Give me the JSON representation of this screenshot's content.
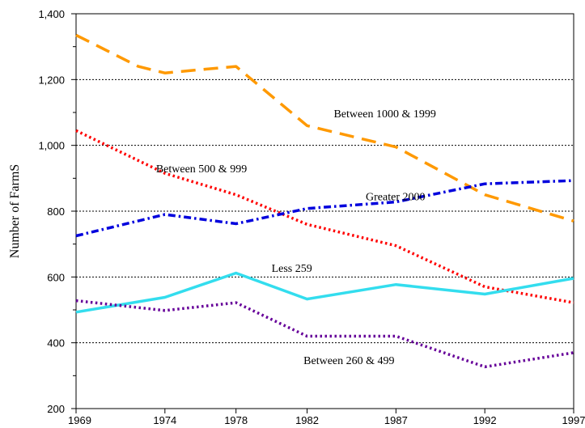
{
  "chart_data": {
    "type": "line",
    "title": "",
    "xlabel": "",
    "ylabel": "Number of FarmS",
    "x": [
      1969,
      1974,
      1978,
      1982,
      1987,
      1992,
      1997
    ],
    "x_tick_labels": [
      "1969",
      "1974",
      "1978",
      "1982",
      "1987",
      "1992",
      "1997"
    ],
    "ylim": [
      200,
      1400
    ],
    "y_ticks": [
      200,
      400,
      600,
      800,
      1000,
      1200,
      1400
    ],
    "y_tick_labels": [
      "200",
      "400",
      "600",
      "800",
      "1,000",
      "1,200",
      "1,400"
    ],
    "grid": "horizontal-dotted",
    "legend": "none",
    "series": [
      {
        "name": "Between 1000 & 1999",
        "color": "#FF9900",
        "dash": "dashed",
        "points": [
          [
            1969,
            1335
          ],
          [
            1972.5,
            1240
          ],
          [
            1974,
            1220
          ],
          [
            1976,
            1230
          ],
          [
            1978,
            1240
          ],
          [
            1982,
            1060
          ],
          [
            1987,
            995
          ],
          [
            1992,
            850
          ],
          [
            1997,
            770
          ]
        ]
      },
      {
        "name": "Between 500 & 999",
        "color": "#FF0000",
        "dash": "dotted",
        "points": [
          [
            1969,
            1045
          ],
          [
            1974,
            915
          ],
          [
            1978,
            850
          ],
          [
            1982,
            760
          ],
          [
            1987,
            695
          ],
          [
            1992,
            570
          ],
          [
            1997,
            522
          ]
        ]
      },
      {
        "name": "Greater 2000",
        "color": "#0000DD",
        "dash": "dashdot",
        "points": [
          [
            1969,
            725
          ],
          [
            1974,
            790
          ],
          [
            1978,
            762
          ],
          [
            1982,
            808
          ],
          [
            1987,
            828
          ],
          [
            1992,
            883
          ],
          [
            1997,
            893
          ]
        ]
      },
      {
        "name": "Less 259",
        "color": "#33DDEE",
        "dash": "solid",
        "points": [
          [
            1969,
            493
          ],
          [
            1974,
            538
          ],
          [
            1978,
            612
          ],
          [
            1982,
            533
          ],
          [
            1987,
            577
          ],
          [
            1992,
            548
          ],
          [
            1997,
            596
          ]
        ]
      },
      {
        "name": "Between 260 & 499",
        "color": "#660099",
        "dash": "dotted",
        "points": [
          [
            1969,
            528
          ],
          [
            1974,
            498
          ],
          [
            1978,
            522
          ],
          [
            1982,
            420
          ],
          [
            1987,
            420
          ],
          [
            1992,
            327
          ],
          [
            1997,
            370
          ]
        ]
      }
    ],
    "annotations": [
      {
        "text": "Between 1000 & 1999",
        "x": 1983.5,
        "y": 1085
      },
      {
        "text": "Between 500 & 999",
        "x": 1973.5,
        "y": 918
      },
      {
        "text": "Greater 2000",
        "x": 1985.3,
        "y": 833
      },
      {
        "text": "Less 259",
        "x": 1980,
        "y": 616
      },
      {
        "text": "Between 260 & 499",
        "x": 1981.8,
        "y": 335
      }
    ]
  }
}
